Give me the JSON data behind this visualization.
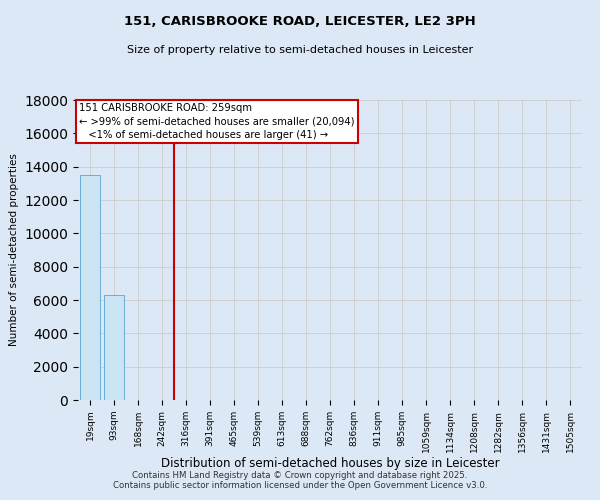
{
  "title_line1": "151, CARISBROOKE ROAD, LEICESTER, LE2 3PH",
  "title_line2": "Size of property relative to semi-detached houses in Leicester",
  "xlabel": "Distribution of semi-detached houses by size in Leicester",
  "ylabel": "Number of semi-detached properties",
  "categories": [
    "19sqm",
    "93sqm",
    "168sqm",
    "242sqm",
    "316sqm",
    "391sqm",
    "465sqm",
    "539sqm",
    "613sqm",
    "688sqm",
    "762sqm",
    "836sqm",
    "911sqm",
    "985sqm",
    "1059sqm",
    "1134sqm",
    "1208sqm",
    "1282sqm",
    "1356sqm",
    "1431sqm",
    "1505sqm"
  ],
  "values": [
    13500,
    6300,
    0,
    0,
    0,
    0,
    0,
    0,
    0,
    0,
    0,
    0,
    0,
    0,
    0,
    0,
    0,
    0,
    0,
    0,
    0
  ],
  "bar_color": "#cce5f5",
  "bar_edgecolor": "#6aaed6",
  "vline_x": 3.5,
  "vline_color": "#cc0000",
  "annotation_line1": "151 CARISBROOKE ROAD: 259sqm",
  "annotation_line2": "← >99% of semi-detached houses are smaller (20,094)",
  "annotation_line3": "   <1% of semi-detached houses are larger (41) →",
  "annotation_box_color": "#cc0000",
  "annotation_bg": "#ffffff",
  "ylim": [
    0,
    18000
  ],
  "yticks": [
    0,
    2000,
    4000,
    6000,
    8000,
    10000,
    12000,
    14000,
    16000,
    18000
  ],
  "grid_color": "#cccccc",
  "bg_color": "#dce8f5",
  "footer": "Contains HM Land Registry data © Crown copyright and database right 2025.\nContains public sector information licensed under the Open Government Licence v3.0."
}
